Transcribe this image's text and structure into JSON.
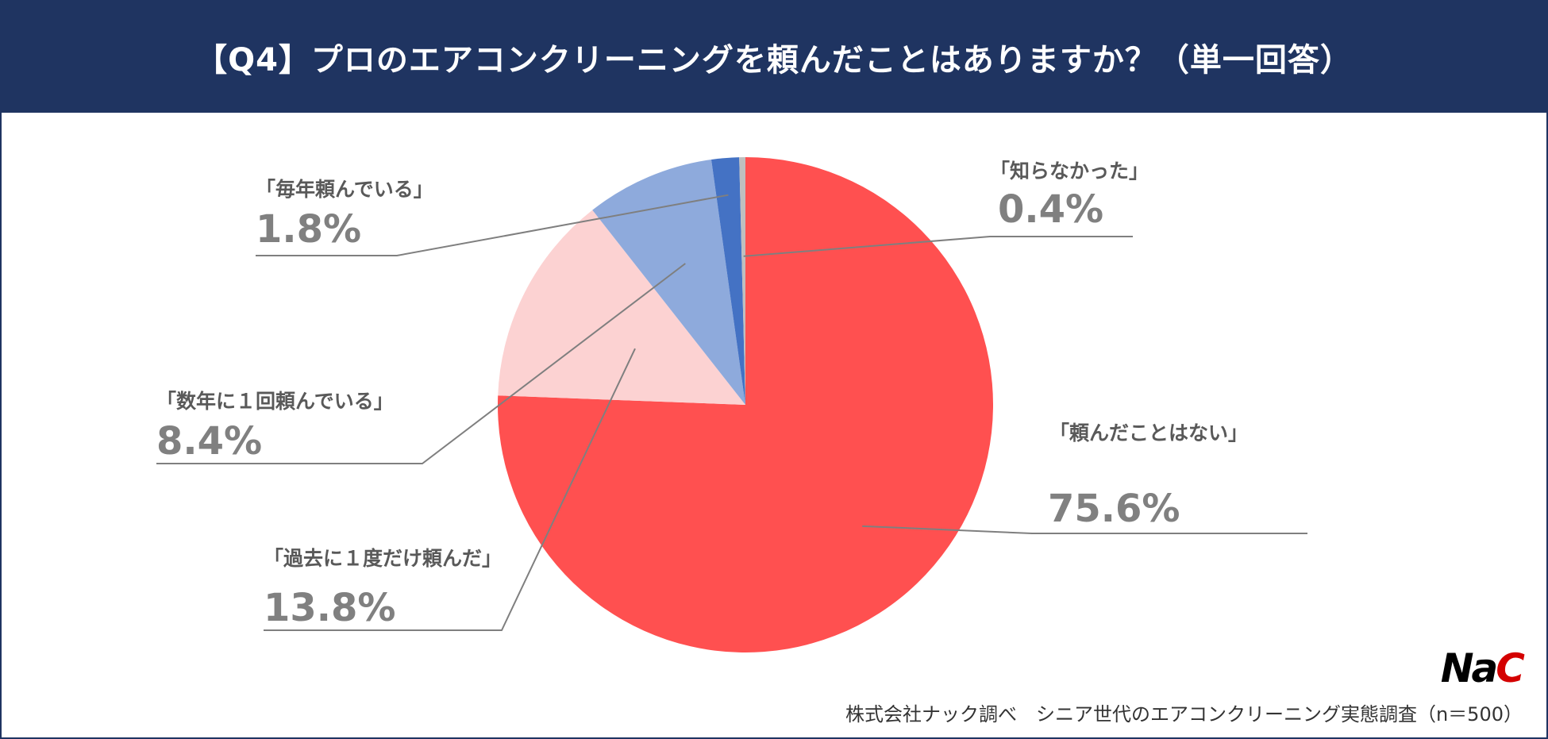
{
  "header": {
    "title": "【Q4】プロのエアコンクリーニングを頼んだことはありますか？（単一回答）"
  },
  "chart_data": {
    "type": "pie",
    "title": "【Q4】プロのエアコンクリーニングを頼んだことはありますか？（単一回答）",
    "slices": [
      {
        "label": "「頼んだことはない」",
        "value": 75.6,
        "value_text": "75.6%",
        "color": "#ff5050"
      },
      {
        "label": "「過去に１度だけ頼んだ」",
        "value": 13.8,
        "value_text": "13.8%",
        "color": "#fcd2d2"
      },
      {
        "label": "「数年に１回頼んでいる」",
        "value": 8.4,
        "value_text": "8.4%",
        "color": "#8eaadc"
      },
      {
        "label": "「毎年頼んでいる」",
        "value": 1.8,
        "value_text": "1.8%",
        "color": "#4472c4"
      },
      {
        "label": "「知らなかった」",
        "value": 0.4,
        "value_text": "0.4%",
        "color": "#bfbfbf"
      }
    ],
    "label_colors": {
      "「頼んだことはない」": "#ff5050",
      "「過去に１度だけ頼んだ」": "#4472c4"
    }
  },
  "footer": {
    "source": "株式会社ナック調べ　シニア世代のエアコンクリーニング実態調査（n＝500）",
    "logo_text": "NaC"
  }
}
